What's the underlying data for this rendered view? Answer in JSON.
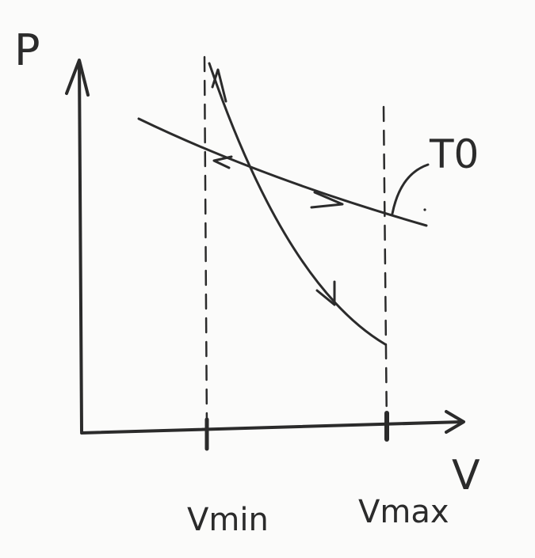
{
  "labels": {
    "y_axis": "P",
    "x_axis": "V",
    "v_min": "Vmin",
    "v_max": "Vmax",
    "isotherm": "T0"
  },
  "colors": {
    "ink": "#2b2b2b",
    "paper": "#fbfbfa"
  }
}
